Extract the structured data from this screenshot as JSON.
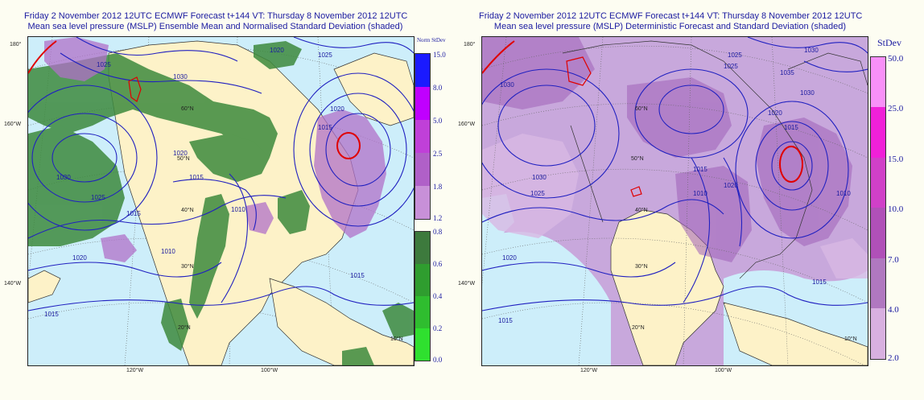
{
  "left_panel": {
    "title_line1": "Friday 2 November 2012 12UTC ECMWF Forecast t+144  VT: Thursday 8 November 2012 12UTC",
    "title_line2": "Mean sea level pressure (MSLP) Ensemble Mean and Normalised Standard Deviation (shaded)",
    "colorbar_title": "Norm StDev",
    "colorbar_upper": {
      "labels": [
        "15.0",
        "8.0",
        "5.0",
        "2.5",
        "1.8",
        "1.2"
      ],
      "colors": [
        "#1a1aff",
        "#c000ff",
        "#c040d8",
        "#b060c8",
        "#c890d8"
      ]
    },
    "colorbar_lower": {
      "labels": [
        "0.8",
        "0.6",
        "0.4",
        "0.2",
        "0.0"
      ],
      "colors": [
        "#3d7a3d",
        "#2f9d2f",
        "#2fbd2f",
        "#2fe02f"
      ]
    },
    "isobar_labels": [
      "1025",
      "1030",
      "1020",
      "1025",
      "1020",
      "1015",
      "1020",
      "1015",
      "1010",
      "1030",
      "1025",
      "1015",
      "1020",
      "1015",
      "1010",
      "1015"
    ],
    "lat_labels": [
      "60°N",
      "50°N",
      "40°N",
      "30°N",
      "20°N",
      "10°N"
    ],
    "lon_labels": [
      "180°",
      "160°W",
      "140°W",
      "120°W",
      "100°W"
    ]
  },
  "right_panel": {
    "title_line1": "Friday 2 November 2012 12UTC ECMWF Forecast t+144  VT: Thursday 8 November 2012 12UTC",
    "title_line2": "Mean sea level pressure (MSLP) Deterministic Forecast and Standard Deviation (shaded)",
    "colorbar_title": "StDev",
    "colorbar": {
      "labels": [
        "50.0",
        "25.0",
        "15.0",
        "10.0",
        "7.0",
        "4.0",
        "2.0"
      ],
      "colors": [
        "#f890f8",
        "#f020d8",
        "#d040c8",
        "#b050b8",
        "#b078c0",
        "#d8b0e0"
      ]
    },
    "isobar_labels": [
      "1030",
      "1025",
      "1020",
      "1025",
      "1030",
      "1035",
      "1030",
      "1030",
      "1025",
      "1020",
      "1015",
      "1010",
      "1015",
      "1020",
      "1010",
      "1015",
      "1015"
    ],
    "lat_labels": [
      "60°N",
      "50°N",
      "40°N",
      "30°N",
      "20°N",
      "10°N"
    ],
    "lon_labels": [
      "180°",
      "160°W",
      "140°W",
      "120°W",
      "100°W"
    ]
  }
}
